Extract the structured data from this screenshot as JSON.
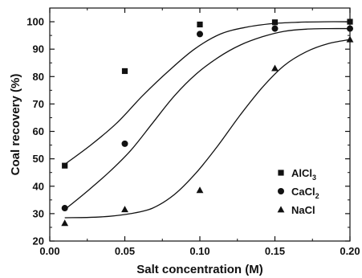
{
  "chart_data": {
    "type": "scatter",
    "xlabel": "Salt concentration (M)",
    "ylabel": "Coal recovery (%)",
    "xlim": [
      0.0,
      0.2
    ],
    "ylim": [
      20,
      105
    ],
    "xticks": [
      0.0,
      0.05,
      0.1,
      0.15,
      0.2
    ],
    "xtick_labels": [
      "0.00",
      "0.05",
      "0.10",
      "0.15",
      "0.20"
    ],
    "yticks": [
      20,
      30,
      40,
      50,
      60,
      70,
      80,
      90,
      100
    ],
    "ytick_labels": [
      "20",
      "30",
      "40",
      "50",
      "60",
      "70",
      "80",
      "90",
      "100"
    ],
    "legend_position": "right-center",
    "series": [
      {
        "name": "AlCl3",
        "label_main": "AlCl",
        "label_sub": "3",
        "marker": "square",
        "x": [
          0.01,
          0.05,
          0.1,
          0.15,
          0.2
        ],
        "y": [
          47.5,
          82,
          99,
          99.8,
          100
        ],
        "fit": [
          48,
          55,
          63,
          73,
          82,
          90,
          95.5,
          98,
          99.3,
          99.8,
          100,
          100
        ]
      },
      {
        "name": "CaCl2",
        "label_main": "CaCl",
        "label_sub": "2",
        "marker": "circle",
        "x": [
          0.01,
          0.05,
          0.1,
          0.15,
          0.2
        ],
        "y": [
          32,
          55.5,
          95.5,
          97.5,
          97.5
        ],
        "fit": [
          31.5,
          38,
          45,
          53,
          63,
          73,
          81,
          87,
          91.5,
          94.5,
          96.5,
          97.3,
          97.5,
          97.5
        ]
      },
      {
        "name": "NaCl",
        "label_main": "NaCl",
        "label_sub": "",
        "marker": "triangle",
        "x": [
          0.01,
          0.05,
          0.1,
          0.15,
          0.2
        ],
        "y": [
          26.5,
          31.5,
          38.5,
          83,
          93.5
        ],
        "fit": [
          28.5,
          28.6,
          29,
          30,
          32,
          37,
          45,
          55,
          66,
          76,
          84,
          89,
          92,
          93.5
        ]
      }
    ]
  }
}
